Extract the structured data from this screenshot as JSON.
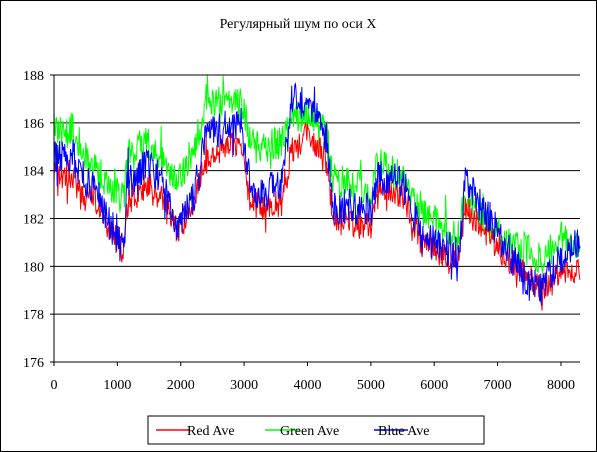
{
  "chart_data": {
    "type": "line",
    "title": "Регулярный шум по оси X",
    "xlabel": "",
    "ylabel": "",
    "xlim": [
      0,
      8300
    ],
    "ylim": [
      176,
      188
    ],
    "xticks": [
      0,
      1000,
      2000,
      3000,
      4000,
      5000,
      6000,
      7000,
      8000
    ],
    "yticks": [
      176,
      178,
      180,
      182,
      184,
      186,
      188
    ],
    "grid": "horizontal",
    "legend_position": "bottom",
    "series": [
      {
        "name": "Red Ave",
        "color": "#ff0000",
        "noise": 0.6,
        "x": [
          0,
          300,
          480,
          560,
          900,
          1100,
          1150,
          1450,
          1700,
          1800,
          1950,
          2200,
          2400,
          2700,
          2950,
          3100,
          3250,
          3600,
          3750,
          4000,
          4300,
          4400,
          4600,
          5000,
          5100,
          5500,
          5800,
          6100,
          6400,
          6470,
          6800,
          7200,
          7500,
          7700,
          8000,
          8300
        ],
        "values": [
          183.8,
          183.7,
          182.6,
          183.2,
          181.5,
          180.6,
          182.6,
          183.3,
          182.9,
          182.3,
          181.5,
          182.6,
          184.6,
          185.0,
          185.0,
          182.7,
          182.4,
          182.6,
          184.9,
          185.4,
          184.4,
          181.9,
          181.9,
          181.6,
          183.4,
          183.0,
          181.0,
          180.6,
          180.4,
          182.6,
          181.4,
          180.2,
          179.5,
          179.0,
          179.7,
          180.0
        ]
      },
      {
        "name": "Green Ave",
        "color": "#00ff00",
        "noise": 0.7,
        "x": [
          0,
          300,
          480,
          600,
          900,
          1100,
          1150,
          1450,
          1700,
          1800,
          1950,
          2200,
          2400,
          2700,
          2950,
          3100,
          3300,
          3600,
          3750,
          4000,
          4300,
          4400,
          4600,
          5000,
          5100,
          5500,
          5800,
          6100,
          6400,
          6470,
          6800,
          7200,
          7500,
          7700,
          8000,
          8300
        ],
        "values": [
          185.6,
          185.8,
          184.6,
          184.2,
          183.2,
          182.8,
          184.6,
          185.2,
          184.6,
          183.9,
          183.5,
          184.9,
          186.7,
          187.0,
          187.0,
          185.3,
          185.0,
          185.2,
          186.1,
          186.4,
          185.6,
          183.6,
          183.6,
          183.2,
          184.3,
          183.7,
          182.2,
          181.7,
          181.3,
          183.1,
          181.9,
          180.9,
          180.6,
          180.3,
          181.2,
          181.0
        ]
      },
      {
        "name": "Blue Ave",
        "color": "#0000ff",
        "noise": 0.75,
        "x": [
          0,
          300,
          480,
          560,
          900,
          1100,
          1150,
          1450,
          1700,
          1800,
          1950,
          2200,
          2400,
          2700,
          2950,
          3100,
          3250,
          3600,
          3750,
          4000,
          4300,
          4400,
          4600,
          5000,
          5100,
          5500,
          5800,
          6100,
          6400,
          6470,
          6800,
          7200,
          7500,
          7700,
          8000,
          8300
        ],
        "values": [
          184.5,
          184.6,
          183.0,
          183.5,
          181.7,
          181.2,
          183.4,
          184.2,
          183.6,
          182.8,
          181.6,
          182.9,
          185.4,
          185.8,
          186.0,
          183.4,
          182.9,
          183.5,
          186.9,
          186.9,
          185.3,
          182.5,
          182.5,
          182.3,
          183.7,
          183.5,
          181.2,
          180.8,
          180.6,
          183.5,
          182.3,
          180.5,
          179.4,
          179.1,
          180.4,
          180.9
        ]
      }
    ]
  }
}
